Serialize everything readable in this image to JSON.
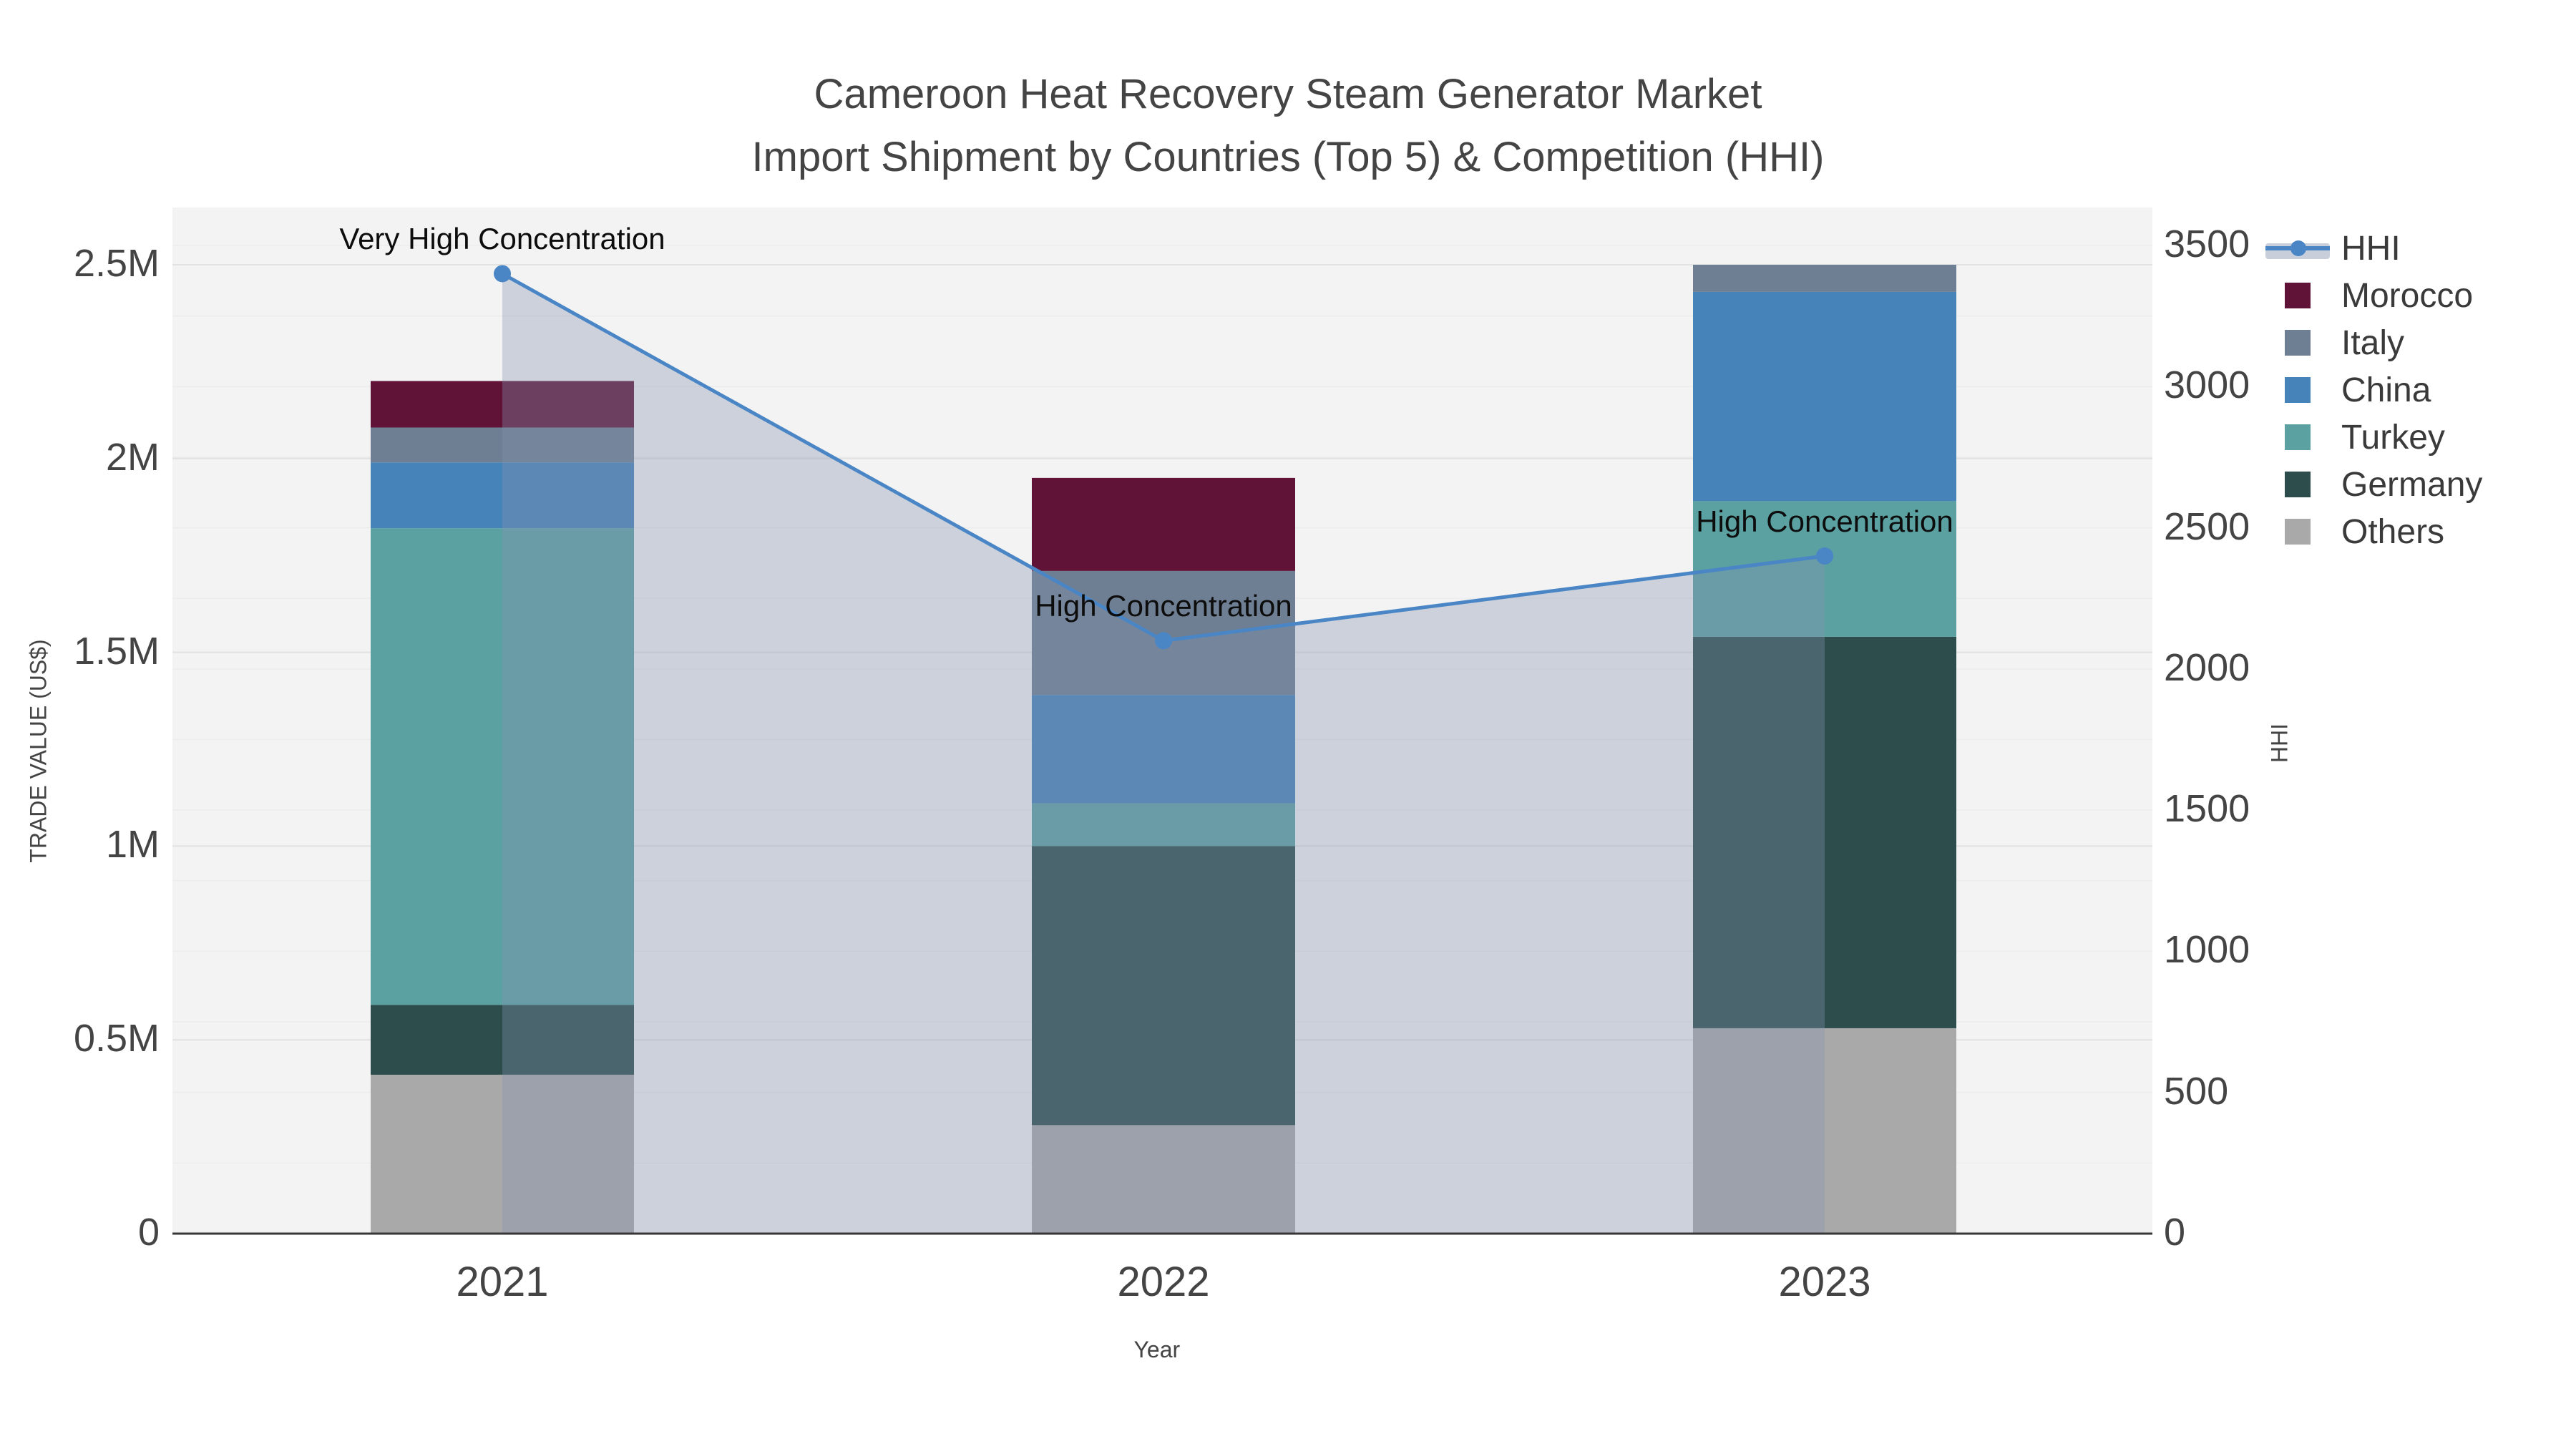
{
  "title": {
    "line1": "Cameroon Heat Recovery Steam Generator Market",
    "line2": "Import Shipment by Countries (Top 5) & Competition (HHI)"
  },
  "axes": {
    "x_title": "Year",
    "y_left_title": "TRADE VALUE (US$)",
    "y_right_title": "HHI",
    "y_left_tick_labels": [
      "0",
      "0.5M",
      "1M",
      "1.5M",
      "2M",
      "2.5M"
    ],
    "y_right_tick_labels": [
      "0",
      "500",
      "1000",
      "1500",
      "2000",
      "2500",
      "3000",
      "3500"
    ]
  },
  "colors": {
    "background": "#ffffff",
    "plot_background": "#f3f3f3",
    "axis_line": "#373737",
    "grid_major": "#e2e2e2",
    "grid_minor": "#ececec",
    "text": "#444444",
    "hhi_line": "#4a86c5",
    "hhi_area_fill": "#8393ae",
    "hhi_area_opacity": 0.35
  },
  "legend": {
    "items": [
      {
        "label": "HHI",
        "type": "line",
        "color": "#4a86c5"
      },
      {
        "label": "Morocco",
        "type": "square",
        "color": "#601337"
      },
      {
        "label": "Italy",
        "type": "square",
        "color": "#6e7f93"
      },
      {
        "label": "China",
        "type": "square",
        "color": "#4583b8"
      },
      {
        "label": "Turkey",
        "type": "square",
        "color": "#5ba1a1"
      },
      {
        "label": "Germany",
        "type": "square",
        "color": "#2d4d4c"
      },
      {
        "label": "Others",
        "type": "square",
        "color": "#a9a9a9"
      }
    ]
  },
  "chart_data": {
    "type": "combo_stacked_bar_line",
    "categories": [
      "2021",
      "2022",
      "2023"
    ],
    "bar_value_unit": "million US$",
    "stack_order_note": "series listed bottom-to-top of the stack",
    "series": [
      {
        "name": "Others",
        "color": "#a9a9a9",
        "values": [
          0.41,
          0.28,
          0.53
        ]
      },
      {
        "name": "Germany",
        "color": "#2d4d4c",
        "values": [
          0.18,
          0.72,
          1.01
        ]
      },
      {
        "name": "Turkey",
        "color": "#5ba1a1",
        "values": [
          1.23,
          0.11,
          0.35
        ]
      },
      {
        "name": "China",
        "color": "#4583b8",
        "values": [
          0.17,
          0.28,
          0.54
        ]
      },
      {
        "name": "Italy",
        "color": "#6e7f93",
        "values": [
          0.09,
          0.32,
          0.07
        ]
      },
      {
        "name": "Morocco",
        "color": "#601337",
        "values": [
          0.12,
          0.24,
          0.0
        ]
      }
    ],
    "bar_totals": [
      2.2,
      1.95,
      2.5
    ],
    "line_series": {
      "name": "HHI",
      "axis": "right",
      "color": "#4a86c5",
      "values": [
        3400,
        2100,
        2400
      ],
      "area_under_line": true
    },
    "annotations": [
      {
        "category": "2021",
        "text": "Very High Concentration"
      },
      {
        "category": "2022",
        "text": "High Concentration"
      },
      {
        "category": "2023",
        "text": "High Concentration"
      }
    ],
    "xlabel": "Year",
    "ylabel_left": "TRADE VALUE (US$)",
    "ylabel_right": "HHI",
    "y_left_range": [
      0,
      2500000
    ],
    "y_left_ticks": [
      0,
      500000,
      1000000,
      1500000,
      2000000,
      2500000
    ],
    "y_right_range": [
      0,
      3500
    ],
    "y_right_ticks": [
      0,
      500,
      1000,
      1500,
      2000,
      2500,
      3000,
      3500
    ],
    "grid": true,
    "legend_position": "right"
  }
}
